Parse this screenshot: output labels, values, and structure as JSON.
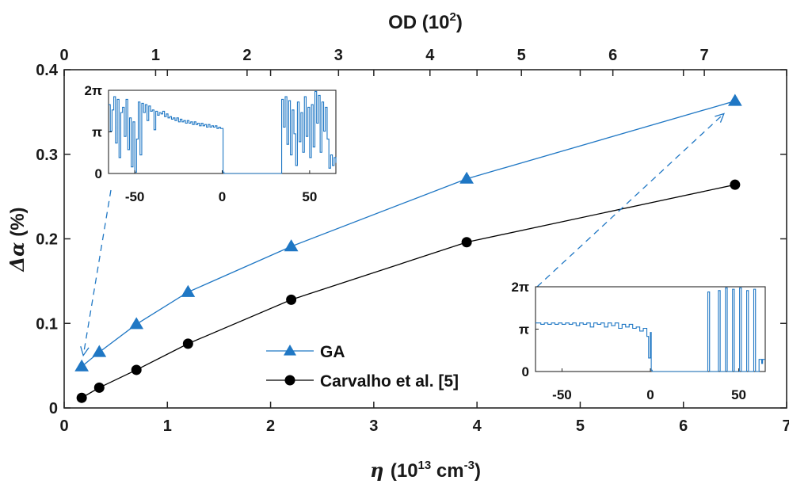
{
  "chart_data": {
    "type": "line",
    "xlabel_symbol": "η",
    "xlabel_text": "(10",
    "xlabel_exp": "13",
    "xlabel_unit": " cm",
    "xlabel_unit_exp": "-3",
    "xlabel_close": ")",
    "ylabel_symbol": "Δα",
    "ylabel_text": " (%)",
    "top_label": "OD (10",
    "top_label_exp": "2",
    "top_label_close": ")",
    "xlim": [
      0,
      7
    ],
    "ylim": [
      0,
      0.4
    ],
    "top_xlim": [
      0,
      7.9
    ],
    "xticks": [
      "0",
      "1",
      "2",
      "3",
      "4",
      "5",
      "6",
      "7"
    ],
    "yticks": [
      "0",
      "0.1",
      "0.2",
      "0.3",
      "0.4"
    ],
    "top_ticks": [
      "0",
      "1",
      "2",
      "3",
      "4",
      "5",
      "6",
      "7"
    ],
    "x": [
      0.17,
      0.34,
      0.7,
      1.2,
      2.2,
      3.9,
      6.5
    ],
    "series": [
      {
        "name": "GA",
        "marker": "triangle",
        "color": "#1f77c4",
        "values": [
          0.049,
          0.066,
          0.099,
          0.137,
          0.191,
          0.271,
          0.363
        ]
      },
      {
        "name": "Carvalho et al. [5]",
        "marker": "circle",
        "color": "#000000",
        "values": [
          0.012,
          0.024,
          0.045,
          0.076,
          0.128,
          0.196,
          0.264
        ]
      }
    ],
    "insets": [
      {
        "id": "left",
        "xlim": [
          -65,
          65
        ],
        "ylim": [
          0,
          6.2832
        ],
        "xticks": [
          "-50",
          "0",
          "50"
        ],
        "yticks": [
          "0",
          "π",
          "2π"
        ],
        "phase": [
          [
            -65,
            5.2
          ],
          [
            -64,
            3.2
          ],
          [
            -63,
            4.8
          ],
          [
            -62,
            5.8
          ],
          [
            -61,
            2.3
          ],
          [
            -60,
            5.6
          ],
          [
            -59,
            1.2
          ],
          [
            -58,
            4.6
          ],
          [
            -57,
            5.0
          ],
          [
            -56,
            2.8
          ],
          [
            -55,
            5.6
          ],
          [
            -54,
            1.8
          ],
          [
            -53,
            4.2
          ],
          [
            -52,
            0.5
          ],
          [
            -51,
            3.9
          ],
          [
            -50,
            0.1
          ],
          [
            -49,
            2.6
          ],
          [
            -48,
            5.4
          ],
          [
            -47,
            1.4
          ],
          [
            -46,
            5.3
          ],
          [
            -45,
            4.6
          ],
          [
            -44,
            5.2
          ],
          [
            -43,
            4.0
          ],
          [
            -42,
            5.1
          ],
          [
            -41,
            4.7
          ],
          [
            -40,
            4.8
          ],
          [
            -39,
            3.3
          ],
          [
            -38,
            4.7
          ],
          [
            -37,
            4.4
          ],
          [
            -36,
            4.6
          ],
          [
            -35,
            4.5
          ],
          [
            -34,
            4.7
          ],
          [
            -33,
            4.3
          ],
          [
            -32,
            4.5
          ],
          [
            -31,
            4.2
          ],
          [
            -30,
            4.3
          ],
          [
            -29,
            4.1
          ],
          [
            -28,
            4.2
          ],
          [
            -27,
            4.0
          ],
          [
            -26,
            4.2
          ],
          [
            -25,
            3.9
          ],
          [
            -24,
            4.1
          ],
          [
            -23,
            3.9
          ],
          [
            -22,
            4.0
          ],
          [
            -21,
            3.8
          ],
          [
            -20,
            4.0
          ],
          [
            -19,
            3.8
          ],
          [
            -18,
            3.9
          ],
          [
            -17,
            3.7
          ],
          [
            -16,
            3.9
          ],
          [
            -15,
            3.7
          ],
          [
            -14,
            3.8
          ],
          [
            -13,
            3.6
          ],
          [
            -12,
            3.8
          ],
          [
            -11,
            3.6
          ],
          [
            -10,
            3.7
          ],
          [
            -9,
            3.5
          ],
          [
            -8,
            3.7
          ],
          [
            -7,
            3.5
          ],
          [
            -6,
            3.6
          ],
          [
            -5,
            3.5
          ],
          [
            -4,
            3.6
          ],
          [
            -3,
            3.4
          ],
          [
            -2,
            3.5
          ],
          [
            -1,
            3.4
          ],
          [
            0,
            3.4
          ],
          [
            0.5,
            0.1
          ],
          [
            1,
            0
          ],
          [
            10,
            0
          ],
          [
            20,
            0
          ],
          [
            30,
            0
          ],
          [
            33.5,
            0
          ],
          [
            34,
            5.6
          ],
          [
            35,
            3.5
          ],
          [
            36,
            5.8
          ],
          [
            37,
            2.2
          ],
          [
            38,
            5.5
          ],
          [
            39,
            1.4
          ],
          [
            40,
            4.8
          ],
          [
            41,
            3.0
          ],
          [
            42,
            0.6
          ],
          [
            43,
            5.4
          ],
          [
            44,
            2.4
          ],
          [
            45,
            4.6
          ],
          [
            46,
            1.6
          ],
          [
            47,
            5.8
          ],
          [
            48,
            2.8
          ],
          [
            49,
            5.0
          ],
          [
            50,
            1.2
          ],
          [
            51,
            5.2
          ],
          [
            52,
            2.0
          ],
          [
            53,
            6.2
          ],
          [
            54,
            3.8
          ],
          [
            55,
            5.9
          ],
          [
            56,
            1.6
          ],
          [
            57,
            5.4
          ],
          [
            58,
            3.2
          ],
          [
            59,
            5.0
          ],
          [
            60,
            2.6
          ],
          [
            61,
            0.4
          ],
          [
            62,
            1.4
          ],
          [
            63,
            0.6
          ],
          [
            64,
            1.2
          ],
          [
            65,
            0.8
          ]
        ]
      },
      {
        "id": "right",
        "xlim": [
          -65,
          65
        ],
        "ylim": [
          0,
          6.2832
        ],
        "xticks": [
          "-50",
          "0",
          "50"
        ],
        "yticks": [
          "0",
          "π",
          "2π"
        ],
        "phase": [
          [
            -65,
            3.6
          ],
          [
            -62,
            3.5
          ],
          [
            -60,
            3.6
          ],
          [
            -58,
            3.5
          ],
          [
            -56,
            3.6
          ],
          [
            -54,
            3.5
          ],
          [
            -52,
            3.6
          ],
          [
            -50,
            3.5
          ],
          [
            -48,
            3.6
          ],
          [
            -46,
            3.5
          ],
          [
            -44,
            3.6
          ],
          [
            -42,
            3.4
          ],
          [
            -40,
            3.6
          ],
          [
            -38,
            3.5
          ],
          [
            -36,
            3.6
          ],
          [
            -34,
            3.3
          ],
          [
            -32,
            3.6
          ],
          [
            -30,
            3.5
          ],
          [
            -28,
            3.6
          ],
          [
            -26,
            3.3
          ],
          [
            -24,
            3.6
          ],
          [
            -22,
            3.4
          ],
          [
            -20,
            3.6
          ],
          [
            -18,
            3.2
          ],
          [
            -16,
            3.5
          ],
          [
            -14,
            3.3
          ],
          [
            -12,
            3.5
          ],
          [
            -10,
            3.2
          ],
          [
            -8,
            3.3
          ],
          [
            -6,
            3.0
          ],
          [
            -4,
            3.2
          ],
          [
            -2,
            2.6
          ],
          [
            -1,
            1.0
          ],
          [
            0,
            2.9
          ],
          [
            0.5,
            0.1
          ],
          [
            1,
            0
          ],
          [
            10,
            0
          ],
          [
            20,
            0
          ],
          [
            30,
            0
          ],
          [
            32,
            0
          ],
          [
            32.5,
            5.9
          ],
          [
            33,
            5.9
          ],
          [
            33.5,
            0
          ],
          [
            38,
            0
          ],
          [
            38.5,
            6.0
          ],
          [
            39,
            6.0
          ],
          [
            39.5,
            0
          ],
          [
            42,
            0
          ],
          [
            42.5,
            6.2
          ],
          [
            43,
            6.2
          ],
          [
            43.5,
            0
          ],
          [
            46,
            0
          ],
          [
            46.5,
            6.1
          ],
          [
            47,
            6.1
          ],
          [
            47.5,
            0
          ],
          [
            50,
            0
          ],
          [
            50.5,
            6.2
          ],
          [
            51,
            6.2
          ],
          [
            51.5,
            0
          ],
          [
            54,
            0
          ],
          [
            54.5,
            6.0
          ],
          [
            55,
            6.0
          ],
          [
            55.5,
            0
          ],
          [
            58,
            0
          ],
          [
            58.5,
            6.1
          ],
          [
            59,
            6.1
          ],
          [
            59.5,
            0
          ],
          [
            61,
            0
          ],
          [
            61.5,
            0.9
          ],
          [
            63,
            0.6
          ],
          [
            63.5,
            0.9
          ],
          [
            65,
            0.9
          ]
        ]
      }
    ]
  }
}
